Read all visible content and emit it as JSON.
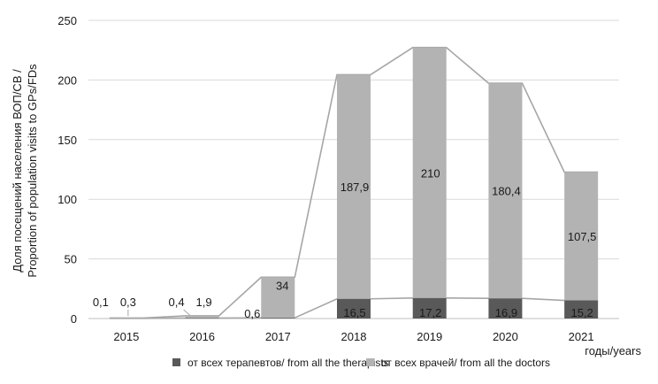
{
  "chart_data": {
    "type": "bar",
    "stacked": true,
    "categories": [
      "2015",
      "2016",
      "2017",
      "2018",
      "2019",
      "2020",
      "2021"
    ],
    "series": [
      {
        "name": "от всех терапевтов/ from all the therapists",
        "color": "#595959",
        "values": [
          0.1,
          0.4,
          0.6,
          16.5,
          17.2,
          16.9,
          15.2
        ],
        "labels": [
          "0,1",
          "0,4",
          "0,6",
          "16,5",
          "17,2",
          "16,9",
          "15,2"
        ]
      },
      {
        "name": "от всех врачей/ from all the doctors",
        "color": "#b3b3b3",
        "values": [
          0.3,
          1.9,
          34,
          187.9,
          210,
          180.4,
          107.5
        ],
        "labels": [
          "0,3",
          "1,9",
          "34",
          "187,9",
          "210",
          "180,4",
          "107,5"
        ]
      }
    ],
    "ylabel_line1": "Доля посещений населения ВОП/СВ /",
    "ylabel_line2": "Proportion of population visits to GPs/FDs",
    "xlabel": "годы/years",
    "ylim": [
      0,
      250
    ],
    "yticks": [
      0,
      50,
      100,
      150,
      200,
      250
    ],
    "grid": "horizontal",
    "legend": "bottom",
    "series_lines": true,
    "line_color": "#a6a6a6"
  }
}
